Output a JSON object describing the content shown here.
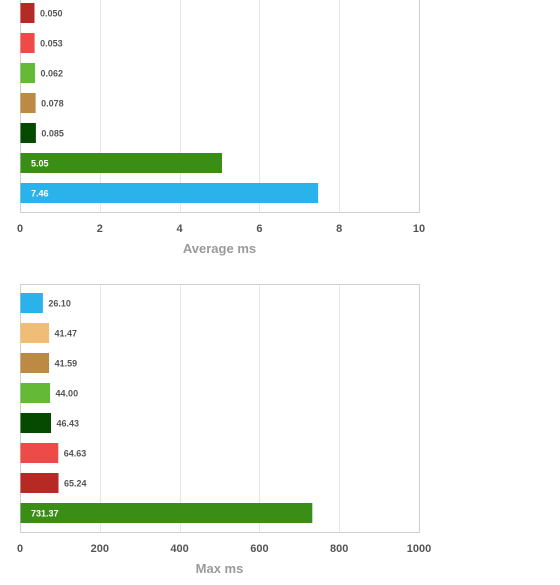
{
  "chart_data": [
    {
      "type": "bar",
      "orientation": "horizontal",
      "values": [
        0.05,
        0.053,
        0.062,
        0.078,
        0.085,
        5.05,
        7.46
      ],
      "labels": [
        "0.050",
        "0.053",
        "0.062",
        "0.078",
        "0.085",
        "5.05",
        "7.46"
      ],
      "colors": [
        "#b52a25",
        "#ee4a47",
        "#64ba37",
        "#bc8a44",
        "#064a02",
        "#3b8e15",
        "#2ab2eb"
      ],
      "xlim": [
        0,
        10
      ],
      "ticks": [
        "0",
        "2",
        "4",
        "6",
        "8",
        "10"
      ],
      "tick_values": [
        0,
        2,
        4,
        6,
        8,
        10
      ],
      "xlabel": "Average ms",
      "grid": true
    },
    {
      "type": "bar",
      "orientation": "horizontal",
      "values": [
        26.1,
        41.47,
        41.59,
        44.0,
        46.43,
        64.63,
        65.24,
        731.37
      ],
      "labels": [
        "26.10",
        "41.47",
        "41.59",
        "44.00",
        "46.43",
        "64.63",
        "65.24",
        "731.37"
      ],
      "colors": [
        "#2ab2eb",
        "#f0bd77",
        "#bc8a44",
        "#64ba37",
        "#064a02",
        "#ee4a47",
        "#b52a25",
        "#3b8e15"
      ],
      "xlim": [
        0,
        1000
      ],
      "ticks": [
        "0",
        "200",
        "400",
        "600",
        "800",
        "1000"
      ],
      "tick_values": [
        0,
        200,
        400,
        600,
        800,
        1000
      ],
      "xlabel": "Max ms",
      "grid": true
    }
  ]
}
